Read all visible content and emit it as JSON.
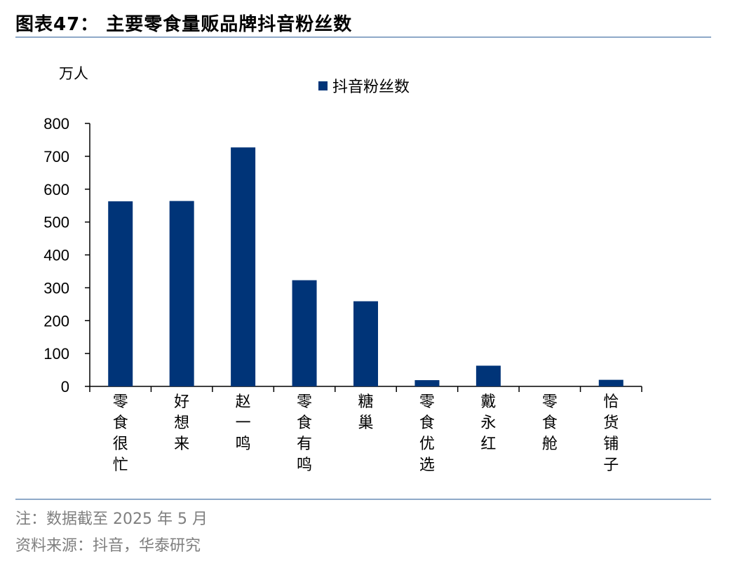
{
  "title": "图表47： 主要零食量贩品牌抖音粉丝数",
  "footnotes": {
    "note": "注：数据截至 2025 年 5 月",
    "source": "资料来源：抖音，华泰研究"
  },
  "colors": {
    "bar": "#003478",
    "rule": "#8ea9c8",
    "footnote": "#7f7f7f"
  },
  "chart_data": {
    "type": "bar",
    "unit_label": "万人",
    "categories": [
      "零食很忙",
      "好想来",
      "赵一鸣",
      "零食有鸣",
      "糖巢",
      "零食优选",
      "戴永红",
      "零食舱",
      "恰货铺子"
    ],
    "series": [
      {
        "name": "抖音粉丝数",
        "values": [
          563,
          564,
          727,
          323,
          259,
          19,
          63,
          0,
          20
        ]
      }
    ],
    "ylim": [
      0,
      800
    ],
    "yticks": [
      0,
      100,
      200,
      300,
      400,
      500,
      600,
      700,
      800
    ],
    "legend": "top-center",
    "grid": false
  }
}
